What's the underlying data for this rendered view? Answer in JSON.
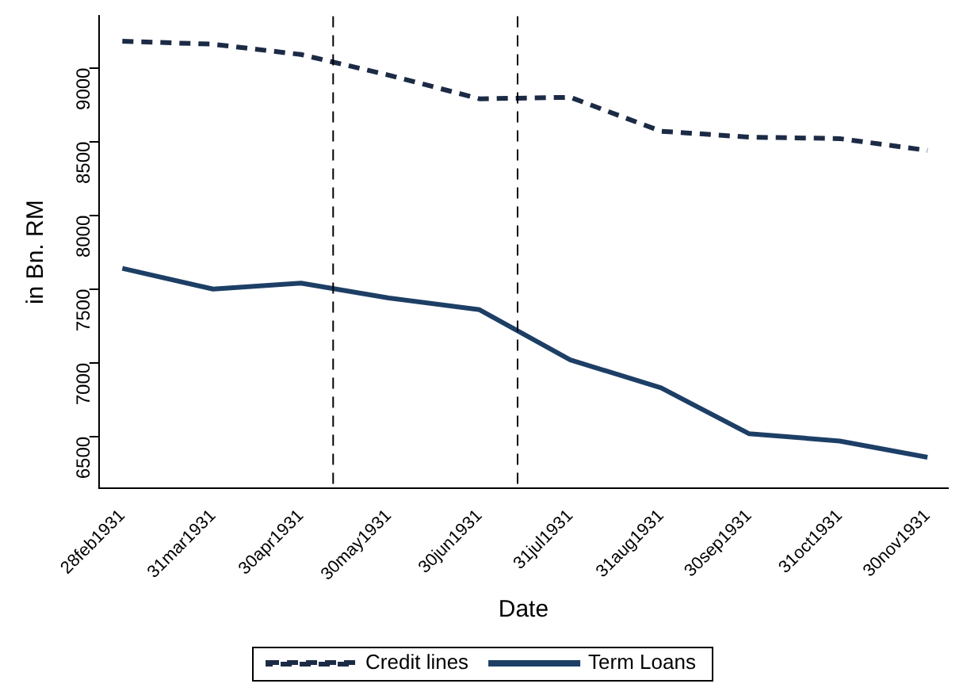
{
  "chart_data": {
    "type": "line",
    "xlabel": "Date",
    "ylabel": "in Bn. RM",
    "x": [
      "1931-02-28",
      "1931-03-31",
      "1931-04-30",
      "1931-05-30",
      "1931-06-30",
      "1931-07-31",
      "1931-08-31",
      "1931-09-30",
      "1931-10-31",
      "1931-11-30"
    ],
    "series": [
      {
        "name": "Credit lines",
        "color": "#1c2b45",
        "line_style": "dashed",
        "values": [
          9180,
          9160,
          9090,
          8950,
          8790,
          8800,
          8570,
          8530,
          8520,
          8440
        ]
      },
      {
        "name": "Term Loans",
        "color": "#1d3f66",
        "line_style": "solid",
        "values": [
          7640,
          7500,
          7540,
          7440,
          7360,
          7020,
          6830,
          6520,
          6470,
          6360
        ]
      }
    ],
    "xlim": [
      "1931-02-20",
      "1931-12-07"
    ],
    "xticks": [
      {
        "value": "1931-02-28",
        "label": "28feb1931"
      },
      {
        "value": "1931-03-31",
        "label": "31mar1931"
      },
      {
        "value": "1931-04-30",
        "label": "30apr1931"
      },
      {
        "value": "1931-05-30",
        "label": "30may1931"
      },
      {
        "value": "1931-06-30",
        "label": "30jun1931"
      },
      {
        "value": "1931-07-31",
        "label": "31jul1931"
      },
      {
        "value": "1931-08-31",
        "label": "31aug1931"
      },
      {
        "value": "1931-09-30",
        "label": "30sep1931"
      },
      {
        "value": "1931-10-31",
        "label": "31oct1931"
      },
      {
        "value": "1931-11-30",
        "label": "30nov1931"
      }
    ],
    "ylim": [
      6150,
      9350
    ],
    "yticks": [
      6500,
      7000,
      7500,
      8000,
      8500,
      9000
    ],
    "ref_lines": [
      {
        "axis": "x",
        "value": "1931-05-11",
        "color": "#000000",
        "line_style": "dashed"
      },
      {
        "axis": "x",
        "value": "1931-07-13",
        "color": "#000000",
        "line_style": "dashed"
      }
    ],
    "grid": false,
    "legend": "bottom",
    "marker": "none"
  }
}
